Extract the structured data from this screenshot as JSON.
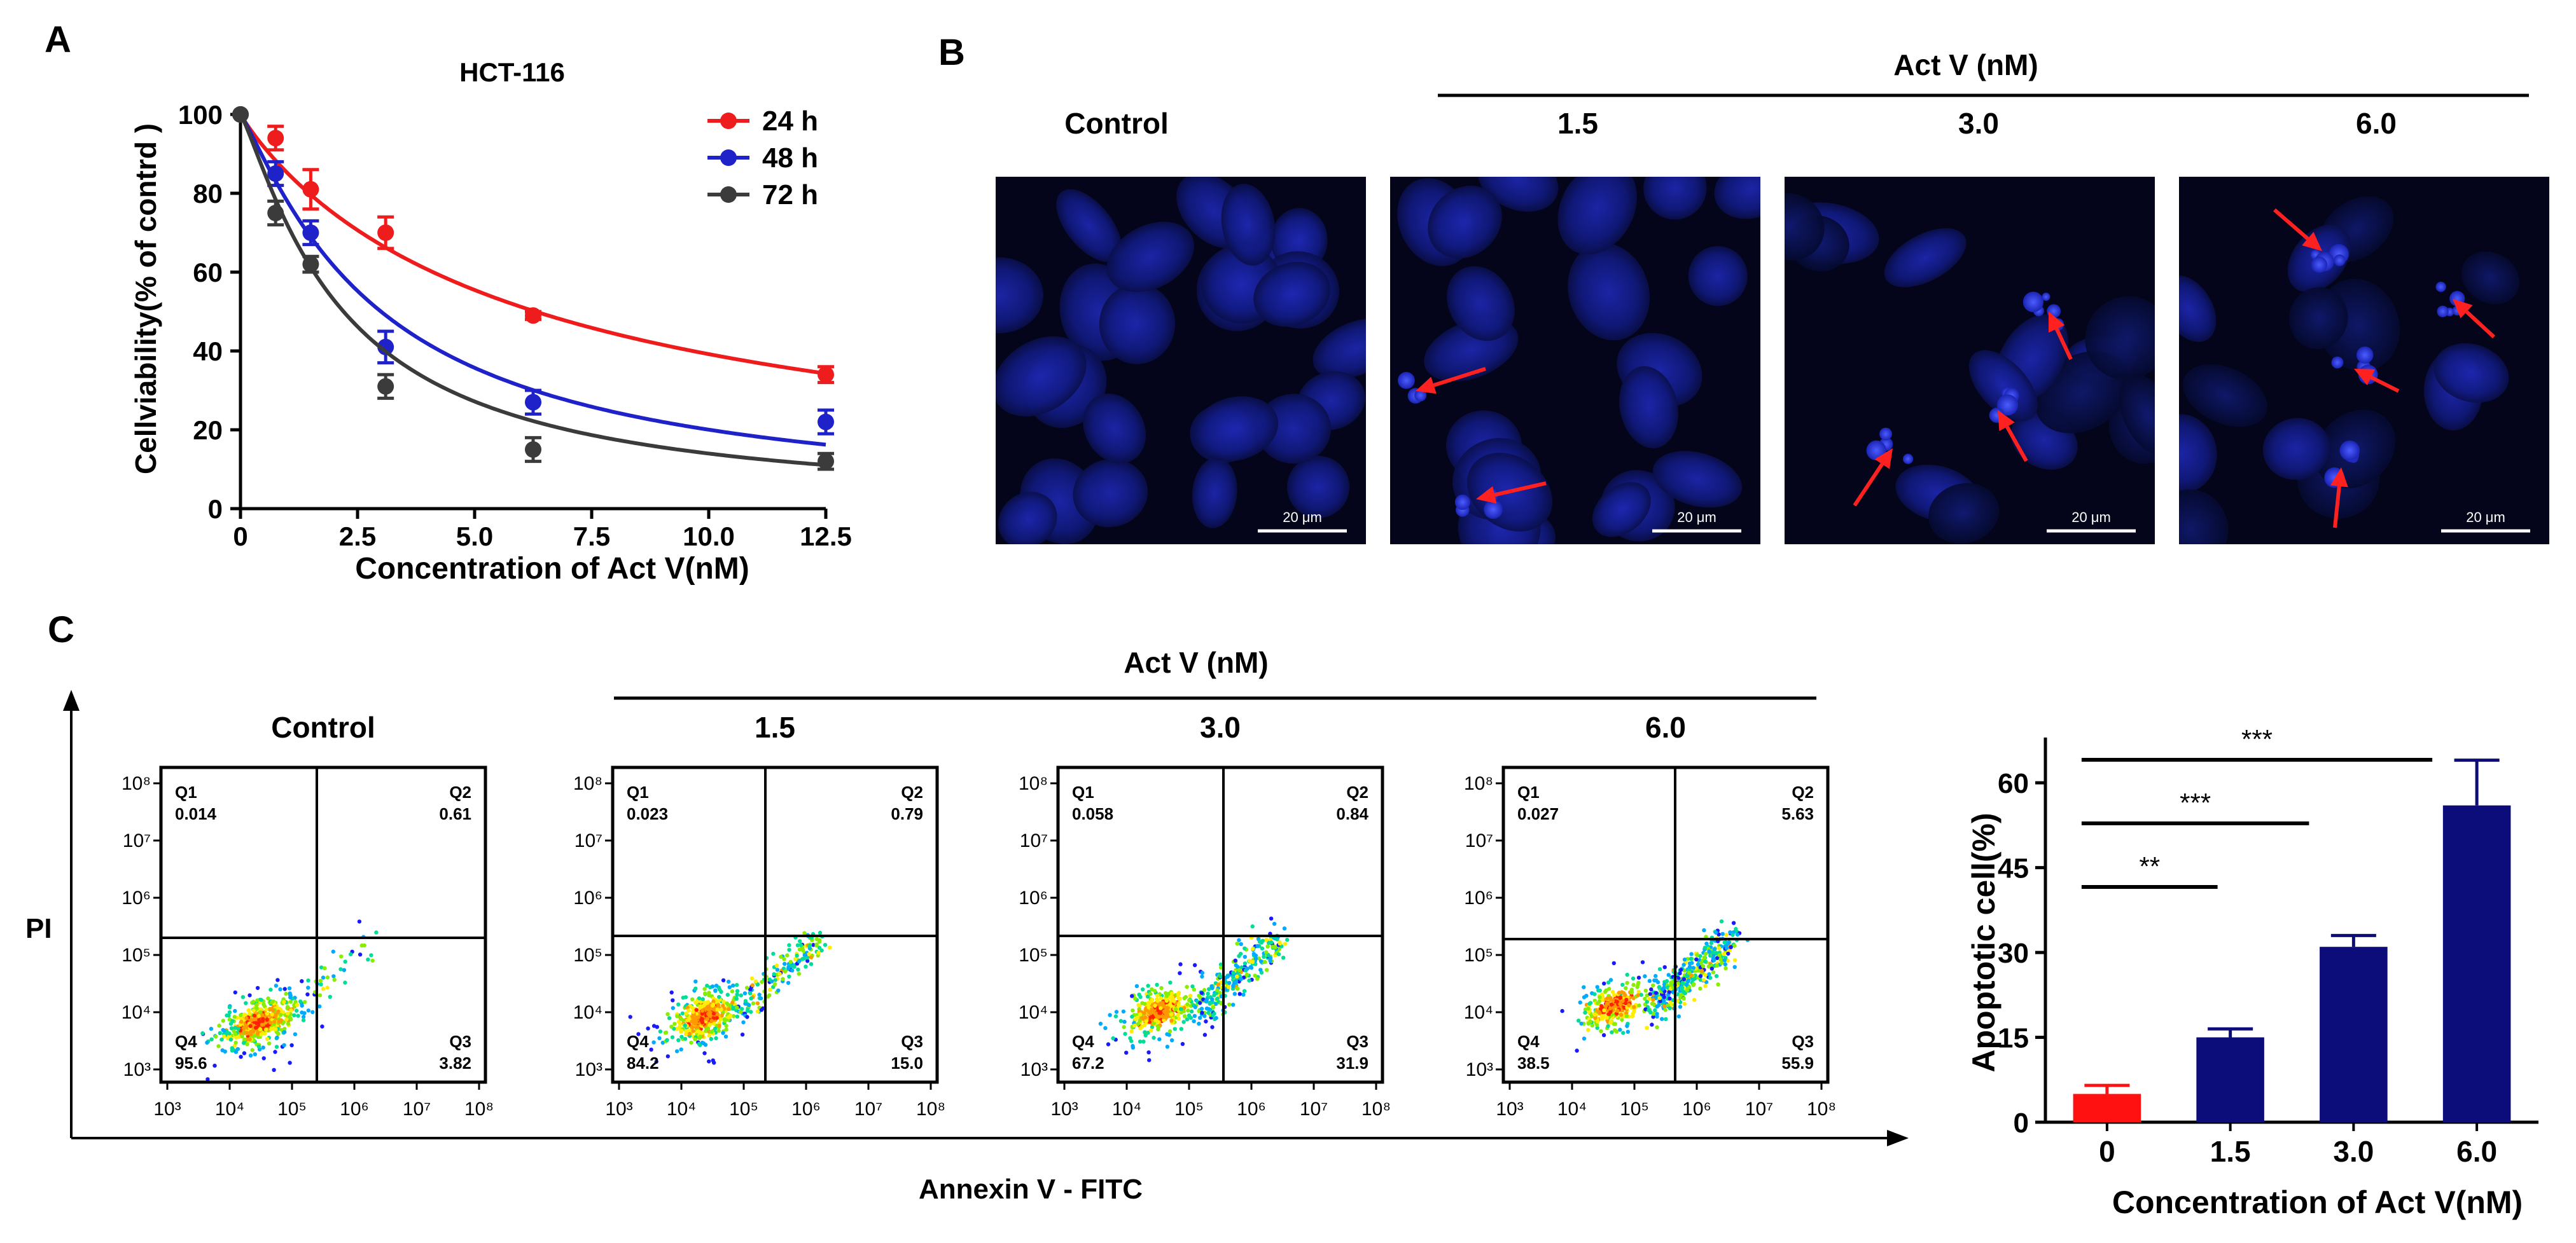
{
  "panels": {
    "A": {
      "letter": "A",
      "chart_data": {
        "type": "line",
        "title": "HCT-116",
        "xlabel": "Concentration of Act V(nM)",
        "ylabel": "Cellviability(% of contrd )",
        "xlim": [
          0,
          12.5
        ],
        "ylim": [
          0,
          100
        ],
        "xticks": [
          "0",
          "2.5",
          "5.0",
          "7.5",
          "10.0",
          "12.5"
        ],
        "xtick_values": [
          0,
          2.5,
          5,
          7.5,
          10,
          12.5
        ],
        "yticks": [
          "0",
          "20",
          "40",
          "60",
          "80",
          "100"
        ],
        "ytick_values": [
          0,
          20,
          40,
          60,
          80,
          100
        ],
        "legend_position": "top-right",
        "series": [
          {
            "name": "24 h",
            "color": "#ee1c1c",
            "x": [
              0,
              0.75,
              1.5,
              3.1,
              6.25,
              12.5
            ],
            "values": [
              100,
              94,
              81,
              70,
              49,
              34
            ],
            "errors": [
              0,
              3,
              5,
              4,
              1,
              2
            ],
            "fit_ic50": 6.3,
            "fit_hill": 0.95,
            "fit_bottom": 0
          },
          {
            "name": "48 h",
            "color": "#1e22c8",
            "x": [
              0,
              0.75,
              1.5,
              3.1,
              6.25,
              12.5
            ],
            "values": [
              100,
              85,
              70,
              41,
              27,
              22
            ],
            "errors": [
              0,
              3,
              3,
              4,
              3,
              3
            ],
            "fit_ic50": 3.0,
            "fit_hill": 1.15,
            "fit_bottom": 0
          },
          {
            "name": "72 h",
            "color": "#3b3b3b",
            "x": [
              0,
              0.75,
              1.5,
              3.1,
              6.25,
              12.5
            ],
            "values": [
              100,
              75,
              62,
              31,
              15,
              12
            ],
            "errors": [
              0,
              3,
              2,
              3,
              3,
              2
            ],
            "fit_ic50": 2.2,
            "fit_hill": 1.2,
            "fit_bottom": 0
          }
        ]
      }
    },
    "B": {
      "letter": "B",
      "header": "Act V (nM)",
      "scale_bar": "20 μm",
      "images": [
        {
          "label": "Control"
        },
        {
          "label": "1.5"
        },
        {
          "label": "3.0"
        },
        {
          "label": "6.0"
        }
      ]
    },
    "C": {
      "letter": "C",
      "header": "Act V (nM)",
      "y_axis_label": "PI",
      "x_axis_label": "Annexin V - FITC",
      "flow_plots": [
        {
          "label": "Control",
          "q1": "Q1",
          "q1v": "0.014",
          "q2": "Q2",
          "q2v": "0.61",
          "q3": "Q3",
          "q3v": "3.82",
          "q4": "Q4",
          "q4v": "95.6"
        },
        {
          "label": "1.5",
          "q1": "Q1",
          "q1v": "0.023",
          "q2": "Q2",
          "q2v": "0.79",
          "q3": "Q3",
          "q3v": "15.0",
          "q4": "Q4",
          "q4v": "84.2"
        },
        {
          "label": "3.0",
          "q1": "Q1",
          "q1v": "0.058",
          "q2": "Q2",
          "q2v": "0.84",
          "q3": "Q3",
          "q3v": "31.9",
          "q4": "Q4",
          "q4v": "67.2"
        },
        {
          "label": "6.0",
          "q1": "Q1",
          "q1v": "0.027",
          "q2": "Q2",
          "q2v": "5.63",
          "q3": "Q3",
          "q3v": "55.9",
          "q4": "Q4",
          "q4v": "38.5"
        }
      ],
      "flow_axis_ticks": {
        "x": [
          "10³",
          "10⁴",
          "10⁵",
          "10⁶",
          "10⁷",
          "10⁸"
        ],
        "y": [
          "10³",
          "10⁴",
          "10⁵",
          "10⁶",
          "10⁷",
          "10⁸"
        ]
      },
      "bar_chart": {
        "type": "bar",
        "xlabel": "Concentration of Act V(nM)",
        "ylabel": "Apoptotic cell(%)",
        "categories": [
          "0",
          "1.5",
          "3.0",
          "6.0"
        ],
        "values": [
          5,
          15,
          31,
          56
        ],
        "errors": [
          1.5,
          1.5,
          2,
          8
        ],
        "colors": [
          "#ff1111",
          "#0c0c7a",
          "#0c0c7a",
          "#0c0c7a"
        ],
        "ylim": [
          0,
          68
        ],
        "yticks": [
          "0",
          "15",
          "30",
          "45",
          "60"
        ],
        "ytick_values": [
          0,
          15,
          30,
          45,
          60
        ],
        "significance": [
          {
            "from": 0,
            "to": 1,
            "label": "**"
          },
          {
            "from": 0,
            "to": 2,
            "label": "***"
          },
          {
            "from": 0,
            "to": 3,
            "label": "***"
          }
        ]
      }
    }
  }
}
